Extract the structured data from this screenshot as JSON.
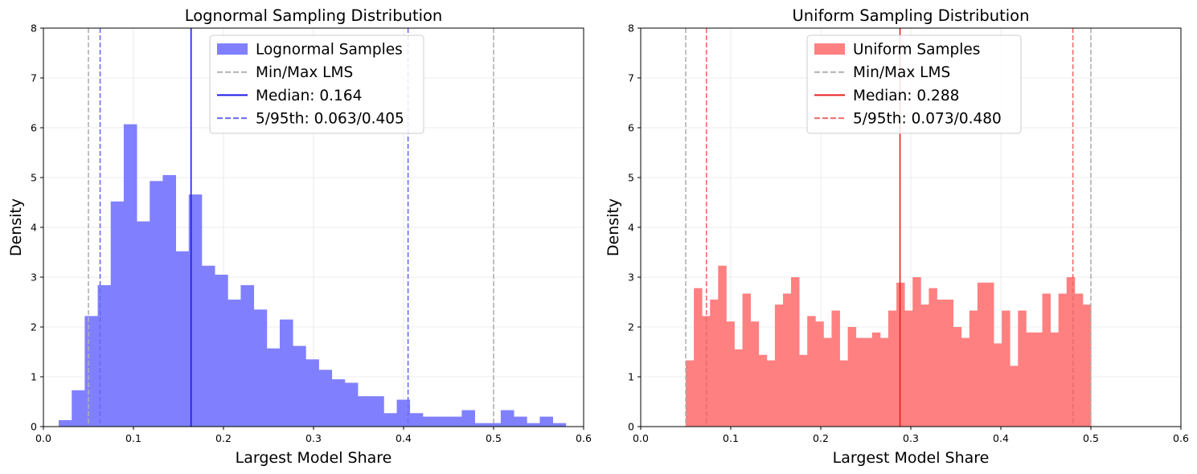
{
  "chart_data": [
    {
      "type": "bar",
      "id": "lognormal",
      "title": "Lognormal Sampling Distribution",
      "xlabel": "Largest Model Share",
      "ylabel": "Density",
      "xlim": [
        0,
        0.6
      ],
      "ylim": [
        0,
        8
      ],
      "xticks": [
        "0.0",
        "0.1",
        "0.2",
        "0.3",
        "0.4",
        "0.5",
        "0.6"
      ],
      "xtick_values": [
        0,
        0.1,
        0.2,
        0.3,
        0.4,
        0.5,
        0.6
      ],
      "yticks": [
        "0",
        "1",
        "2",
        "3",
        "4",
        "5",
        "6",
        "7",
        "8"
      ],
      "ytick_values": [
        0,
        1,
        2,
        3,
        4,
        5,
        6,
        7,
        8
      ],
      "grid": true,
      "legend_position": "top-center",
      "bar_color": "#8080ff",
      "series": [
        {
          "name": "Lognormal Samples",
          "bin_start": 0.017,
          "bin_width": 0.01444,
          "values": [
            0.13,
            0.73,
            2.22,
            2.84,
            4.52,
            6.07,
            4.12,
            4.93,
            5.05,
            3.52,
            4.66,
            3.23,
            3.05,
            2.55,
            2.84,
            2.35,
            1.57,
            2.15,
            1.62,
            1.35,
            1.14,
            0.95,
            0.88,
            0.61,
            0.61,
            0.27,
            0.54,
            0.27,
            0.2,
            0.2,
            0.2,
            0.33,
            0.07,
            0.07,
            0.33,
            0.2,
            0.07,
            0.2,
            0.07,
            0.0
          ]
        }
      ],
      "reference_lines": [
        {
          "kind": "minmax",
          "x": 0.05,
          "color": "#b0b0b0",
          "style": "dashed"
        },
        {
          "kind": "minmax",
          "x": 0.5,
          "color": "#b0b0b0",
          "style": "dashed"
        },
        {
          "kind": "median",
          "x": 0.164,
          "color": "#1a1ae6",
          "style": "solid"
        },
        {
          "kind": "percentile",
          "x": 0.063,
          "color": "#6a6af0",
          "style": "dashed"
        },
        {
          "kind": "percentile",
          "x": 0.405,
          "color": "#6a6af0",
          "style": "dashed"
        }
      ],
      "legend": [
        {
          "label": "Lognormal Samples",
          "kind": "patch",
          "color": "#8080ff"
        },
        {
          "label": "Min/Max LMS",
          "kind": "dashed",
          "color": "#b0b0b0"
        },
        {
          "label": "Median: 0.164",
          "kind": "solid",
          "color": "#1a1ae6"
        },
        {
          "label": "5/95th: 0.063/0.405",
          "kind": "dashed",
          "color": "#6a6af0"
        }
      ]
    },
    {
      "type": "bar",
      "id": "uniform",
      "title": "Uniform Sampling Distribution",
      "xlabel": "Largest Model Share",
      "ylabel": "Density",
      "xlim": [
        0,
        0.6
      ],
      "ylim": [
        0,
        8
      ],
      "xticks": [
        "0.0",
        "0.1",
        "0.2",
        "0.3",
        "0.4",
        "0.5",
        "0.6"
      ],
      "xtick_values": [
        0,
        0.1,
        0.2,
        0.3,
        0.4,
        0.5,
        0.6
      ],
      "yticks": [
        "0",
        "1",
        "2",
        "3",
        "4",
        "5",
        "6",
        "7",
        "8"
      ],
      "ytick_values": [
        0,
        1,
        2,
        3,
        4,
        5,
        6,
        7,
        8
      ],
      "grid": true,
      "legend_position": "top-center",
      "bar_color": "#ff8080",
      "series": [
        {
          "name": "Uniform Samples",
          "bin_start": 0.05,
          "bin_width": 0.009,
          "values": [
            1.33,
            2.78,
            2.22,
            2.55,
            3.23,
            2.11,
            1.55,
            2.67,
            2.11,
            1.44,
            1.33,
            2.45,
            2.67,
            3.0,
            1.44,
            2.22,
            2.11,
            1.78,
            2.33,
            1.33,
            2.0,
            1.78,
            1.78,
            1.89,
            1.78,
            2.33,
            2.89,
            2.33,
            3.0,
            2.45,
            2.78,
            2.55,
            2.55,
            2.0,
            1.78,
            2.33,
            2.89,
            2.89,
            1.67,
            2.33,
            1.22,
            2.33,
            1.89,
            1.89,
            2.67,
            1.89,
            2.67,
            3.0,
            2.67,
            2.45
          ]
        }
      ],
      "reference_lines": [
        {
          "kind": "minmax",
          "x": 0.05,
          "color": "#b0b0b0",
          "style": "dashed"
        },
        {
          "kind": "minmax",
          "x": 0.5,
          "color": "#b0b0b0",
          "style": "dashed"
        },
        {
          "kind": "median",
          "x": 0.288,
          "color": "#e62020",
          "style": "solid"
        },
        {
          "kind": "percentile",
          "x": 0.073,
          "color": "#f06a6a",
          "style": "dashed"
        },
        {
          "kind": "percentile",
          "x": 0.48,
          "color": "#f06a6a",
          "style": "dashed"
        }
      ],
      "legend": [
        {
          "label": "Uniform Samples",
          "kind": "patch",
          "color": "#ff8080"
        },
        {
          "label": "Min/Max LMS",
          "kind": "dashed",
          "color": "#b0b0b0"
        },
        {
          "label": "Median: 0.288",
          "kind": "solid",
          "color": "#e62020"
        },
        {
          "label": "5/95th: 0.073/0.480",
          "kind": "dashed",
          "color": "#f06a6a"
        }
      ]
    }
  ]
}
